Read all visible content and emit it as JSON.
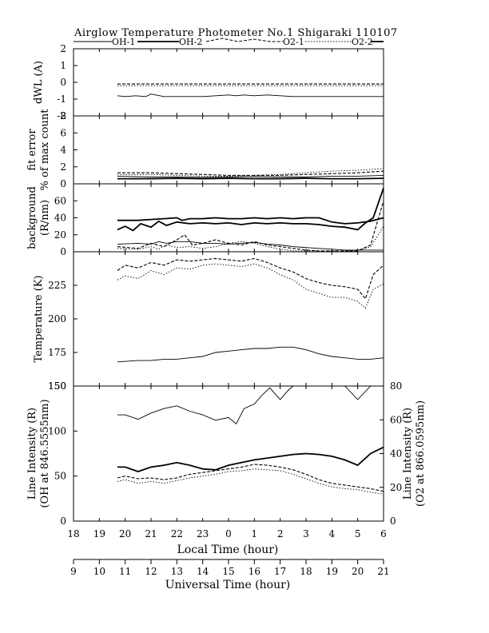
{
  "chart_data": {
    "type": "line",
    "title": "Airglow Temperature Photometer No.1  Shigaraki   110107",
    "legend": [
      "OH-1",
      "OH-2",
      "O2-1",
      "O2-2"
    ],
    "local_time_axis": {
      "label": "Local Time (hour)",
      "ticks": [
        "18",
        "19",
        "20",
        "21",
        "22",
        "23",
        "0",
        "1",
        "2",
        "3",
        "4",
        "5",
        "6"
      ]
    },
    "ut_axis": {
      "label": "Universal Time (hour)",
      "ticks": [
        "9",
        "10",
        "11",
        "12",
        "13",
        "14",
        "15",
        "16",
        "17",
        "18",
        "19",
        "20",
        "21"
      ]
    },
    "panels": [
      {
        "key": "dwl",
        "ylabel": [
          "dWL (A)"
        ],
        "ylim": [
          -2,
          2
        ],
        "ticks": [
          "2",
          "1",
          "0",
          "-1",
          "-2"
        ],
        "tick_values": [
          2,
          1,
          0,
          -1,
          -2
        ],
        "series": [
          {
            "style": "dash",
            "x": [
              19.7,
              21,
              22,
              23,
              24,
              25,
              26,
              27,
              28,
              29,
              30
            ],
            "y": [
              -0.1,
              -0.1,
              -0.1,
              -0.1,
              -0.1,
              -0.1,
              -0.1,
              -0.1,
              -0.1,
              -0.1,
              -0.1
            ]
          },
          {
            "style": "dot",
            "x": [
              19.7,
              21,
              22,
              23,
              24,
              25,
              26,
              27,
              28,
              29,
              30
            ],
            "y": [
              -0.2,
              -0.2,
              -0.2,
              -0.2,
              -0.2,
              -0.2,
              -0.2,
              -0.2,
              -0.2,
              -0.2,
              -0.2
            ]
          },
          {
            "style": "thin",
            "x": [
              19.7,
              20,
              20.4,
              20.8,
              21,
              21.5,
              22,
              22.5,
              23,
              23.5,
              24,
              24.3,
              24.6,
              25,
              25.5,
              26,
              26.5,
              27,
              27.5,
              28,
              28.5,
              29,
              29.5,
              30
            ],
            "y": [
              -0.8,
              -0.85,
              -0.8,
              -0.85,
              -0.7,
              -0.85,
              -0.85,
              -0.85,
              -0.85,
              -0.8,
              -0.75,
              -0.8,
              -0.75,
              -0.8,
              -0.75,
              -0.8,
              -0.85,
              -0.85,
              -0.85,
              -0.85,
              -0.85,
              -0.85,
              -0.85,
              -0.85
            ]
          }
        ]
      },
      {
        "key": "fit",
        "ylabel": [
          "fit error",
          "% of max count"
        ],
        "ylim": [
          0,
          8
        ],
        "ticks": [
          "8",
          "6",
          "4",
          "2",
          "0"
        ],
        "tick_values": [
          8,
          6,
          4,
          2,
          0
        ],
        "series": [
          {
            "style": "thick",
            "x": [
              19.7,
              21,
              22,
              23,
              24,
              25,
              26,
              27,
              28,
              29,
              30
            ],
            "y": [
              0.6,
              0.6,
              0.65,
              0.6,
              0.65,
              0.6,
              0.6,
              0.65,
              0.6,
              0.6,
              0.65
            ]
          },
          {
            "style": "thin",
            "x": [
              19.7,
              21,
              22,
              23,
              24,
              25,
              26,
              27,
              28,
              29,
              30
            ],
            "y": [
              0.9,
              0.8,
              0.8,
              0.75,
              0.8,
              0.85,
              0.8,
              0.8,
              0.9,
              0.9,
              1.0
            ]
          },
          {
            "style": "dash",
            "x": [
              19.7,
              21,
              22,
              23,
              24,
              25,
              26,
              27,
              28,
              29,
              30
            ],
            "y": [
              1.3,
              1.3,
              1.2,
              1.1,
              1.0,
              1.0,
              1.0,
              1.1,
              1.2,
              1.3,
              1.5
            ]
          },
          {
            "style": "dot",
            "x": [
              19.7,
              21,
              22,
              23,
              24,
              25,
              26,
              27,
              28,
              29,
              30
            ],
            "y": [
              1.1,
              1.1,
              1.0,
              0.9,
              0.9,
              1.0,
              1.1,
              1.3,
              1.5,
              1.6,
              1.8
            ]
          }
        ]
      },
      {
        "key": "bg",
        "ylabel": [
          "background",
          "(R/nm)"
        ],
        "ylim": [
          0,
          80
        ],
        "ticks": [
          "60",
          "40",
          "20",
          "0"
        ],
        "tick_values": [
          60,
          40,
          20,
          0
        ],
        "series": [
          {
            "style": "thick",
            "x": [
              19.7,
              20.5,
              21,
              21.5,
              22,
              22.2,
              22.5,
              23,
              23.5,
              24,
              24.5,
              25,
              25.5,
              26,
              26.5,
              27,
              27.5,
              28,
              28.5,
              29,
              29.5,
              30
            ],
            "y": [
              37,
              37,
              38,
              39,
              40,
              37,
              39,
              39,
              40,
              39,
              39,
              40,
              39,
              40,
              39,
              40,
              40,
              35,
              33,
              34,
              36,
              40
            ]
          },
          {
            "style": "thick",
            "x": [
              19.7,
              20,
              20.3,
              20.6,
              21,
              21.3,
              21.6,
              22,
              22.5,
              23,
              23.5,
              24,
              24.5,
              25,
              25.5,
              26,
              26.5,
              27,
              27.5,
              28,
              28.5,
              29,
              29.3,
              29.6,
              30
            ],
            "y": [
              26,
              30,
              25,
              33,
              29,
              36,
              31,
              35,
              33,
              34,
              33,
              34,
              32,
              34,
              33,
              34,
              33,
              33,
              32,
              30,
              29,
              26,
              34,
              40,
              75
            ]
          },
          {
            "style": "thin",
            "x": [
              19.7,
              20.5,
              21,
              21.3,
              21.6,
              22,
              22.5,
              23,
              23.5,
              24,
              24.5,
              25,
              25.5,
              26,
              26.5,
              27,
              27.5,
              28,
              28.5,
              29,
              30
            ],
            "y": [
              9,
              10,
              9,
              12,
              10,
              12,
              12,
              10,
              10,
              9,
              10,
              11,
              9,
              8,
              6,
              5,
              4,
              3,
              2,
              2,
              2
            ]
          },
          {
            "style": "dash",
            "x": [
              19.7,
              20.5,
              21,
              21.5,
              22,
              22.3,
              22.6,
              23,
              23.5,
              24,
              24.5,
              25,
              25.5,
              26,
              26.5,
              27,
              27.5,
              28,
              28.5,
              29,
              29.5,
              30
            ],
            "y": [
              6,
              4,
              10,
              6,
              14,
              20,
              8,
              10,
              14,
              10,
              8,
              12,
              8,
              6,
              4,
              2,
              1,
              1,
              1,
              1,
              8,
              60
            ]
          },
          {
            "style": "dot",
            "x": [
              19.7,
              20.5,
              21,
              21.3,
              21.6,
              22,
              22.5,
              23,
              23.5,
              24,
              24.5,
              25,
              25.5,
              26,
              26.5,
              27,
              27.5,
              28,
              28.5,
              29,
              29.5,
              30
            ],
            "y": [
              4,
              3,
              6,
              3,
              8,
              5,
              6,
              4,
              6,
              10,
              12,
              10,
              6,
              3,
              1,
              1,
              1,
              1,
              1,
              1,
              6,
              30
            ]
          }
        ]
      },
      {
        "key": "temp",
        "ylabel": [
          "Temperature (K)"
        ],
        "ylim": [
          150,
          250
        ],
        "ticks": [
          "225",
          "200",
          "175",
          "150"
        ],
        "tick_values": [
          225,
          200,
          175,
          150
        ],
        "series": [
          {
            "style": "thin",
            "x": [
              19.7,
              20.5,
              21,
              21.5,
              22,
              22.5,
              23,
              23.5,
              24,
              24.5,
              25,
              25.5,
              26,
              26.5,
              27,
              27.5,
              28,
              28.5,
              29,
              29.5,
              30
            ],
            "y": [
              168,
              169,
              169,
              170,
              170,
              171,
              172,
              175,
              176,
              177,
              178,
              178,
              179,
              179,
              177,
              174,
              172,
              171,
              170,
              170,
              171
            ]
          },
          {
            "style": "dash",
            "x": [
              19.7,
              20,
              20.5,
              21,
              21.5,
              22,
              22.5,
              23,
              23.5,
              24,
              24.5,
              25,
              25.5,
              26,
              26.5,
              27,
              27.5,
              28,
              28.5,
              29,
              29.3,
              29.6,
              30
            ],
            "y": [
              236,
              240,
              238,
              242,
              240,
              244,
              243,
              244,
              245,
              244,
              243,
              245,
              242,
              238,
              235,
              230,
              227,
              225,
              224,
              222,
              215,
              233,
              240
            ]
          },
          {
            "style": "dot",
            "x": [
              19.7,
              20,
              20.5,
              21,
              21.5,
              22,
              22.5,
              23,
              23.5,
              24,
              24.5,
              25,
              25.5,
              26,
              26.5,
              27,
              27.5,
              28,
              28.5,
              29,
              29.3,
              29.6,
              30
            ],
            "y": [
              229,
              232,
              230,
              236,
              233,
              238,
              237,
              240,
              241,
              240,
              239,
              241,
              238,
              233,
              229,
              222,
              219,
              216,
              216,
              213,
              208,
              222,
              226
            ]
          }
        ]
      },
      {
        "key": "int",
        "ylabel_left": [
          "Line Intensity (R)",
          "(OH at 846.5555nm)"
        ],
        "ylabel_right": [
          "Line Intensity (R)",
          "(O2 at 866.0595nm)"
        ],
        "ylim": [
          0,
          150
        ],
        "ticks": [
          "150",
          "100",
          "50",
          "0"
        ],
        "tick_values": [
          150,
          100,
          50,
          0
        ],
        "ylim_right": [
          0,
          80
        ],
        "ticks_right": [
          "80",
          "60",
          "40",
          "20",
          "0"
        ],
        "tick_values_right": [
          80,
          60,
          40,
          20,
          0
        ],
        "series": [
          {
            "style": "thin",
            "x": [
              19.7,
              20,
              20.5,
              21,
              21.5,
              22,
              22.5,
              23,
              23.5,
              24,
              24.3,
              24.6,
              25,
              25.3,
              25.6,
              26,
              26.3,
              26.5,
              27,
              27.5,
              28,
              28.5,
              29,
              29.5,
              30
            ],
            "y": [
              118,
              118,
              113,
              120,
              125,
              128,
              122,
              118,
              112,
              115,
              108,
              125,
              130,
              140,
              148,
              135,
              145,
              150,
              152,
              150,
              155,
              150,
              135,
              152,
              160
            ]
          },
          {
            "style": "thick",
            "x": [
              19.7,
              20,
              20.5,
              21,
              21.5,
              22,
              22.5,
              23,
              23.5,
              24,
              24.5,
              25,
              25.5,
              26,
              26.5,
              27,
              27.5,
              28,
              28.5,
              29,
              29.5,
              30
            ],
            "y": [
              60,
              60,
              55,
              60,
              62,
              65,
              62,
              58,
              57,
              62,
              65,
              68,
              70,
              72,
              74,
              75,
              74,
              72,
              68,
              62,
              75,
              82
            ]
          },
          {
            "style": "dash",
            "x": [
              19.7,
              20,
              20.5,
              21,
              21.5,
              22,
              22.5,
              23,
              23.5,
              24,
              24.5,
              25,
              25.5,
              26,
              26.5,
              27,
              27.5,
              28,
              28.5,
              29,
              29.5,
              30
            ],
            "y": [
              48,
              50,
              47,
              48,
              46,
              48,
              52,
              54,
              56,
              58,
              60,
              63,
              62,
              60,
              57,
              52,
              46,
              42,
              40,
              38,
              36,
              33
            ]
          },
          {
            "style": "dot",
            "x": [
              19.7,
              20,
              20.5,
              21,
              21.5,
              22,
              22.5,
              23,
              23.5,
              24,
              24.5,
              25,
              25.5,
              26,
              26.5,
              27,
              27.5,
              28,
              28.5,
              29,
              29.5,
              30
            ],
            "y": [
              44,
              46,
              42,
              44,
              42,
              45,
              48,
              50,
              52,
              55,
              56,
              58,
              57,
              56,
              52,
              47,
              42,
              38,
              36,
              35,
              32,
              30
            ]
          }
        ]
      }
    ]
  }
}
